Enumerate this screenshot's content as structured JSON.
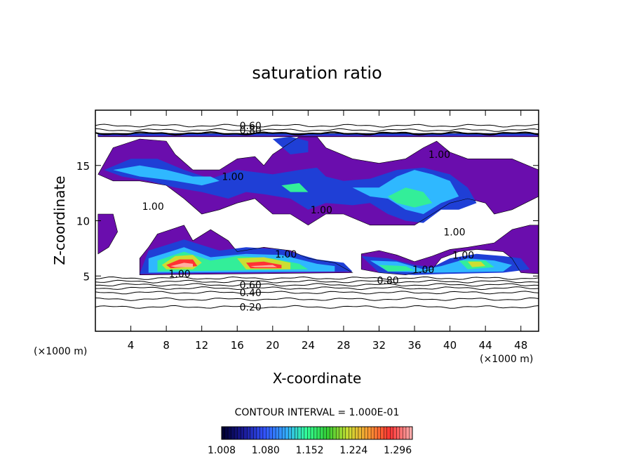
{
  "chart_data": {
    "type": "heatmap",
    "title": "saturation ratio",
    "xlabel": "X-coordinate",
    "ylabel": "Z-coordinate",
    "x_units_left": "(×1000 m)",
    "x_units_right": "(×1000 m)",
    "xlim": [
      0,
      50
    ],
    "ylim": [
      0,
      20
    ],
    "x_ticks": [
      4,
      8,
      12,
      16,
      20,
      24,
      28,
      32,
      36,
      40,
      44,
      48
    ],
    "y_ticks": [
      5,
      10,
      15
    ],
    "contour_interval_text": "CONTOUR INTERVAL = 1.000E-01",
    "colorbar": {
      "min": 1.008,
      "max": 1.32,
      "tick_values": [
        1.008,
        1.08,
        1.152,
        1.224,
        1.296
      ],
      "tick_labels": [
        "1.008",
        "1.080",
        "1.152",
        "1.224",
        "1.296"
      ],
      "colors": [
        "#000033",
        "#1a1a99",
        "#3355ff",
        "#33aaff",
        "#33ff99",
        "#33cc33",
        "#ccdd33",
        "#ff9933",
        "#ff3333",
        "#ffaaaa"
      ]
    },
    "contour_labels": [
      {
        "text": "0.60",
        "x": 17.5,
        "z": 18.6
      },
      {
        "text": "0.80",
        "x": 17.5,
        "z": 18.2
      },
      {
        "text": "1.00",
        "x": 15.5,
        "z": 14.0
      },
      {
        "text": "1.00",
        "x": 6.5,
        "z": 11.3
      },
      {
        "text": "1.00",
        "x": 25.5,
        "z": 11.0
      },
      {
        "text": "1.00",
        "x": 38.8,
        "z": 16.0
      },
      {
        "text": "1.00",
        "x": 40.5,
        "z": 9.0
      },
      {
        "text": "1.00",
        "x": 21.5,
        "z": 7.0
      },
      {
        "text": "1.00",
        "x": 41.5,
        "z": 6.9
      },
      {
        "text": "1.00",
        "x": 9.5,
        "z": 5.2
      },
      {
        "text": "1.00",
        "x": 37.0,
        "z": 5.6
      },
      {
        "text": "0.80",
        "x": 33.0,
        "z": 4.6
      },
      {
        "text": "0.60",
        "x": 17.5,
        "z": 4.2
      },
      {
        "text": "0.40",
        "x": 17.5,
        "z": 3.5
      },
      {
        "text": "0.20",
        "x": 17.5,
        "z": 2.2
      }
    ],
    "regions": [
      {
        "level": 0,
        "points": [
          [
            0.3,
            14.2
          ],
          [
            2,
            16.6
          ],
          [
            5,
            17.4
          ],
          [
            8,
            17.2
          ],
          [
            9,
            16.0
          ],
          [
            11,
            14.6
          ],
          [
            14,
            14.6
          ],
          [
            16,
            15.6
          ],
          [
            18,
            15.8
          ],
          [
            19,
            15.0
          ],
          [
            20,
            16.0
          ],
          [
            23,
            17.6
          ],
          [
            25,
            17.6
          ],
          [
            26,
            16.6
          ],
          [
            29,
            15.6
          ],
          [
            32,
            15.2
          ],
          [
            35,
            15.6
          ],
          [
            37,
            16.6
          ],
          [
            38.5,
            17.2
          ],
          [
            40,
            16.2
          ],
          [
            42,
            15.6
          ],
          [
            44,
            15.6
          ],
          [
            47,
            15.6
          ],
          [
            50,
            14.6
          ],
          [
            50,
            12.2
          ],
          [
            47,
            11.0
          ],
          [
            45,
            10.6
          ],
          [
            44,
            11.6
          ],
          [
            42,
            12.0
          ],
          [
            40,
            11.6
          ],
          [
            38,
            10.6
          ],
          [
            36,
            9.6
          ],
          [
            34,
            9.6
          ],
          [
            31,
            9.6
          ],
          [
            28,
            10.6
          ],
          [
            26,
            10.6
          ],
          [
            24,
            9.6
          ],
          [
            22,
            10.6
          ],
          [
            20,
            10.6
          ],
          [
            18,
            12.0
          ],
          [
            16,
            11.6
          ],
          [
            14,
            11.0
          ],
          [
            12,
            10.6
          ],
          [
            10,
            12.0
          ],
          [
            8,
            13.2
          ],
          [
            5,
            13.6
          ],
          [
            2,
            13.6
          ]
        ]
      },
      {
        "level": 0,
        "points": [
          [
            0.3,
            10.6
          ],
          [
            2,
            10.6
          ],
          [
            2.5,
            9.0
          ],
          [
            1.5,
            7.6
          ],
          [
            0.3,
            7.0
          ]
        ]
      },
      {
        "level": 0,
        "points": [
          [
            7,
            8.8
          ],
          [
            10,
            9.6
          ],
          [
            11,
            8.2
          ],
          [
            13,
            9.2
          ],
          [
            15,
            8.2
          ],
          [
            16,
            7.2
          ],
          [
            19,
            7.6
          ],
          [
            22,
            7.3
          ],
          [
            24,
            6.6
          ],
          [
            27,
            6.2
          ],
          [
            29,
            5.3
          ],
          [
            5,
            5.1
          ],
          [
            5,
            6.6
          ],
          [
            6,
            7.6
          ]
        ]
      },
      {
        "level": 0,
        "points": [
          [
            47,
            9.2
          ],
          [
            49,
            9.6
          ],
          [
            50,
            9.6
          ],
          [
            50,
            5.2
          ],
          [
            48,
            5.3
          ],
          [
            47,
            6.6
          ],
          [
            46,
            7.2
          ],
          [
            43,
            7.4
          ],
          [
            41,
            7.2
          ],
          [
            39,
            6.6
          ],
          [
            38,
            5.6
          ],
          [
            35,
            5.1
          ],
          [
            32,
            5.3
          ],
          [
            30,
            5.6
          ],
          [
            30,
            7.0
          ],
          [
            32,
            7.3
          ],
          [
            34,
            6.9
          ],
          [
            36,
            6.3
          ],
          [
            38,
            6.8
          ],
          [
            40,
            7.4
          ],
          [
            42,
            7.6
          ],
          [
            45,
            8.0
          ]
        ]
      },
      {
        "level": 0,
        "points": [
          [
            0.3,
            17.6
          ],
          [
            0.3,
            17.9
          ],
          [
            50,
            17.9
          ],
          [
            50,
            17.6
          ]
        ]
      },
      {
        "level": 1,
        "points": [
          [
            1,
            14.6
          ],
          [
            4,
            15.6
          ],
          [
            7,
            15.6
          ],
          [
            10,
            14.6
          ],
          [
            13,
            13.8
          ],
          [
            16,
            14.6
          ],
          [
            20,
            14.2
          ],
          [
            23,
            14.6
          ],
          [
            25,
            14.8
          ],
          [
            26,
            14.0
          ],
          [
            28,
            13.6
          ],
          [
            31,
            13.8
          ],
          [
            34,
            14.6
          ],
          [
            37,
            14.8
          ],
          [
            40,
            14.2
          ],
          [
            42,
            13.0
          ],
          [
            43,
            11.6
          ],
          [
            41,
            11.0
          ],
          [
            39,
            11.0
          ],
          [
            37,
            9.8
          ],
          [
            35,
            10.0
          ],
          [
            33,
            10.6
          ],
          [
            31,
            11.6
          ],
          [
            29,
            11.4
          ],
          [
            26,
            11.6
          ],
          [
            24,
            11.0
          ],
          [
            22,
            12.0
          ],
          [
            19,
            12.4
          ],
          [
            17,
            12.6
          ],
          [
            15,
            12.0
          ],
          [
            12,
            12.6
          ],
          [
            9,
            13.0
          ],
          [
            6,
            13.6
          ],
          [
            3,
            14.0
          ]
        ]
      },
      {
        "level": 1,
        "points": [
          [
            6,
            7.3
          ],
          [
            10,
            8.3
          ],
          [
            14,
            7.3
          ],
          [
            17,
            7.6
          ],
          [
            21,
            7.4
          ],
          [
            25,
            6.5
          ],
          [
            28,
            6.2
          ],
          [
            29,
            5.4
          ],
          [
            5,
            5.2
          ]
        ]
      },
      {
        "level": 1,
        "points": [
          [
            30,
            6.8
          ],
          [
            33,
            6.6
          ],
          [
            36,
            6.0
          ],
          [
            38,
            5.8
          ],
          [
            40,
            6.6
          ],
          [
            43,
            7.0
          ],
          [
            46,
            6.8
          ],
          [
            48,
            6.6
          ],
          [
            49,
            5.6
          ],
          [
            46,
            5.3
          ],
          [
            40,
            5.2
          ],
          [
            36,
            5.1
          ],
          [
            32,
            5.3
          ]
        ]
      },
      {
        "level": 1,
        "points": [
          [
            20,
            17.4
          ],
          [
            22,
            17.6
          ],
          [
            24,
            17.2
          ],
          [
            24,
            16.2
          ],
          [
            22,
            16.0
          ]
        ]
      },
      {
        "level": 1,
        "points": [
          [
            0.3,
            17.9
          ],
          [
            50,
            17.9
          ],
          [
            50,
            17.7
          ],
          [
            0.3,
            17.7
          ]
        ]
      },
      {
        "level": 3,
        "points": [
          [
            2,
            14.6
          ],
          [
            5,
            15.0
          ],
          [
            8,
            14.6
          ],
          [
            11,
            14.0
          ],
          [
            13,
            14.0
          ],
          [
            14,
            13.6
          ],
          [
            12,
            13.2
          ],
          [
            9,
            13.6
          ],
          [
            5,
            14.0
          ]
        ]
      },
      {
        "level": 3,
        "points": [
          [
            29,
            13.0
          ],
          [
            32,
            13.0
          ],
          [
            34,
            14.0
          ],
          [
            36,
            14.6
          ],
          [
            38,
            14.2
          ],
          [
            40,
            13.6
          ],
          [
            41,
            12.2
          ],
          [
            39,
            11.6
          ],
          [
            37,
            10.6
          ],
          [
            35,
            11.0
          ],
          [
            33,
            12.0
          ],
          [
            31,
            12.2
          ]
        ]
      },
      {
        "level": 3,
        "points": [
          [
            6,
            6.6
          ],
          [
            10,
            7.6
          ],
          [
            13,
            6.7
          ],
          [
            17,
            7.0
          ],
          [
            21,
            6.9
          ],
          [
            25,
            6.1
          ],
          [
            27,
            5.9
          ],
          [
            27,
            5.4
          ],
          [
            6,
            5.3
          ]
        ]
      },
      {
        "level": 3,
        "points": [
          [
            31,
            6.4
          ],
          [
            34,
            6.3
          ],
          [
            37,
            5.6
          ],
          [
            39,
            5.9
          ],
          [
            42,
            6.6
          ],
          [
            45,
            6.4
          ],
          [
            47,
            6.0
          ],
          [
            46,
            5.4
          ],
          [
            38,
            5.3
          ],
          [
            33,
            5.4
          ]
        ]
      },
      {
        "level": 4,
        "points": [
          [
            33,
            12.2
          ],
          [
            35,
            13.0
          ],
          [
            37,
            12.6
          ],
          [
            38,
            11.6
          ],
          [
            36,
            11.2
          ],
          [
            34,
            11.6
          ]
        ]
      },
      {
        "level": 4,
        "points": [
          [
            21,
            13.2
          ],
          [
            23,
            13.4
          ],
          [
            24,
            12.6
          ],
          [
            22,
            12.6
          ]
        ]
      },
      {
        "level": 4,
        "points": [
          [
            7,
            6.4
          ],
          [
            10,
            7.2
          ],
          [
            13,
            6.4
          ],
          [
            16,
            6.8
          ],
          [
            20,
            6.6
          ],
          [
            23,
            6.1
          ],
          [
            24,
            5.6
          ],
          [
            7,
            5.4
          ]
        ]
      },
      {
        "level": 4,
        "points": [
          [
            32,
            6.0
          ],
          [
            35,
            5.9
          ],
          [
            36,
            5.5
          ],
          [
            33,
            5.4
          ]
        ]
      },
      {
        "level": 4,
        "points": [
          [
            41,
            6.4
          ],
          [
            44,
            6.4
          ],
          [
            45,
            5.8
          ],
          [
            42,
            5.6
          ]
        ]
      },
      {
        "level": 6,
        "points": [
          [
            7.5,
            6.0
          ],
          [
            9,
            6.8
          ],
          [
            11,
            6.9
          ],
          [
            12,
            6.2
          ],
          [
            11,
            5.6
          ],
          [
            8,
            5.6
          ]
        ]
      },
      {
        "level": 6,
        "points": [
          [
            16,
            6.6
          ],
          [
            19,
            6.7
          ],
          [
            22,
            6.2
          ],
          [
            22,
            5.6
          ],
          [
            17,
            5.6
          ]
        ]
      },
      {
        "level": 6,
        "points": [
          [
            42,
            6.3
          ],
          [
            43.5,
            6.3
          ],
          [
            44,
            5.9
          ],
          [
            42.5,
            5.8
          ]
        ]
      },
      {
        "level": 8,
        "points": [
          [
            8,
            6.0
          ],
          [
            9.5,
            6.5
          ],
          [
            11,
            6.5
          ],
          [
            11.5,
            5.9
          ],
          [
            8.5,
            5.7
          ]
        ]
      },
      {
        "level": 8,
        "points": [
          [
            17,
            6.2
          ],
          [
            19,
            6.3
          ],
          [
            21,
            6.0
          ],
          [
            21,
            5.7
          ],
          [
            17.5,
            5.7
          ]
        ]
      },
      {
        "level": 9,
        "points": [
          [
            8.5,
            5.9
          ],
          [
            10,
            6.2
          ],
          [
            11,
            6.1
          ],
          [
            11,
            5.8
          ],
          [
            9,
            5.8
          ]
        ]
      },
      {
        "level": 9,
        "points": [
          [
            17.5,
            5.9
          ],
          [
            20,
            6.0
          ],
          [
            20.5,
            5.8
          ],
          [
            18,
            5.8
          ]
        ]
      }
    ],
    "contour_lines": [
      {
        "level": 0.2,
        "z": 2.2
      },
      {
        "level": 0.3,
        "z": 2.9
      },
      {
        "level": 0.4,
        "z": 3.5
      },
      {
        "level": 0.5,
        "z": 3.9
      },
      {
        "level": 0.6,
        "z": 4.2
      },
      {
        "level": 0.7,
        "z": 4.5
      },
      {
        "level": 0.8,
        "z": 4.8
      },
      {
        "level": 0.6,
        "z": 18.6
      },
      {
        "level": 0.8,
        "z": 18.2
      },
      {
        "level": 0.9,
        "z": 17.9
      }
    ]
  }
}
